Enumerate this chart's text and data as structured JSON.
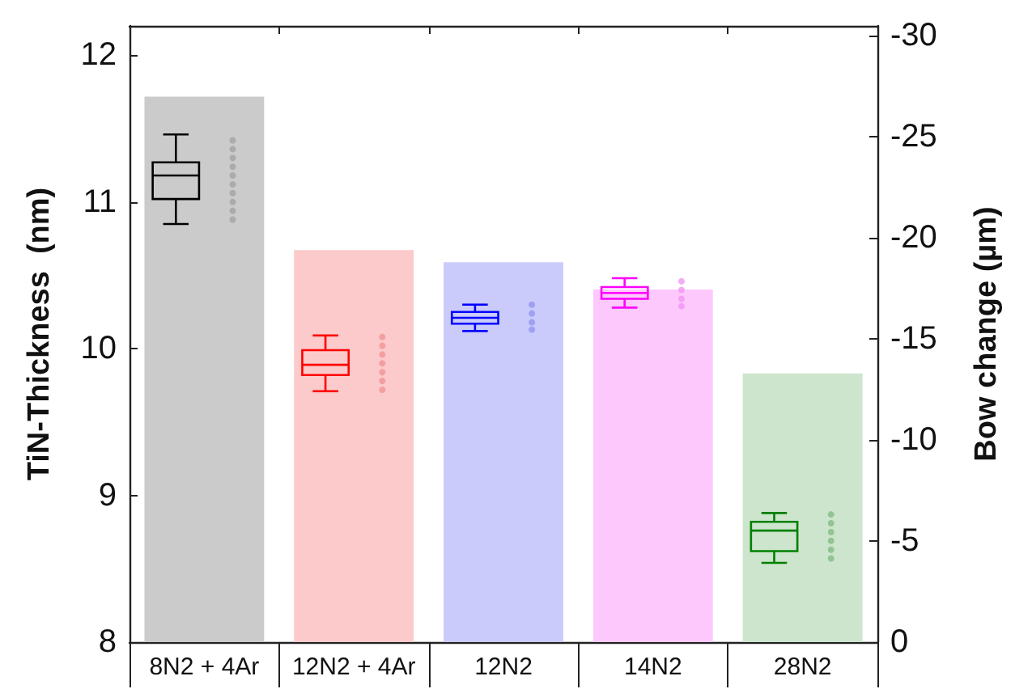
{
  "chart_data": {
    "type": "bar",
    "ylabel": "TiN-Thickness  (nm)",
    "y2label": "Bow change (µm)",
    "categories": [
      "8N2 + 4Ar",
      "12N2 + 4Ar",
      "12N2",
      "14N2",
      "28N2"
    ],
    "ylim": [
      8,
      12.2
    ],
    "yticks": [
      8,
      9,
      10,
      11,
      12
    ],
    "y2lim": [
      0,
      -30.5
    ],
    "y2ticks": [
      0,
      -5,
      -10,
      -15,
      -20,
      -25,
      -30
    ],
    "grid": false,
    "series": [
      {
        "axis": "y2",
        "colors": [
          "#cbcbcb",
          "#fccaca",
          "#cbcbfb",
          "#fdc9fd",
          "#cde5cd"
        ],
        "values": [
          -27.0,
          -19.4,
          -18.8,
          -17.45,
          -13.3
        ]
      },
      {
        "type": "box",
        "colors": [
          "#000000",
          "#ff0000",
          "#0000ff",
          "#ff00ff",
          "#008000"
        ],
        "boxes": [
          {
            "low": 10.85,
            "q1": 11.02,
            "median": 11.18,
            "q3": 11.27,
            "high": 11.46
          },
          {
            "low": 9.71,
            "q1": 9.82,
            "median": 9.89,
            "q3": 9.99,
            "high": 10.09
          },
          {
            "low": 10.12,
            "q1": 10.17,
            "median": 10.21,
            "q3": 10.25,
            "high": 10.3
          },
          {
            "low": 10.28,
            "q1": 10.34,
            "median": 10.38,
            "q3": 10.42,
            "high": 10.48
          },
          {
            "low": 8.54,
            "q1": 8.62,
            "median": 8.76,
            "q3": 8.82,
            "high": 8.88
          }
        ]
      },
      {
        "type": "scatter",
        "color": "#a0a0a0",
        "x": [
          "8N2 + 4Ar",
          "8N2 + 4Ar",
          "8N2 + 4Ar",
          "8N2 + 4Ar",
          "8N2 + 4Ar",
          "8N2 + 4Ar",
          "8N2 + 4Ar",
          "8N2 + 4Ar",
          "8N2 + 4Ar",
          "8N2 + 4Ar"
        ],
        "values": [
          11.42,
          11.36,
          11.3,
          11.24,
          11.18,
          11.12,
          11.06,
          11.0,
          10.94,
          10.88
        ]
      },
      {
        "type": "scatter",
        "color": "#f09090",
        "x": [
          "12N2 + 4Ar",
          "12N2 + 4Ar",
          "12N2 + 4Ar",
          "12N2 + 4Ar",
          "12N2 + 4Ar",
          "12N2 + 4Ar",
          "12N2 + 4Ar"
        ],
        "values": [
          10.08,
          10.02,
          9.96,
          9.9,
          9.84,
          9.78,
          9.72
        ]
      },
      {
        "type": "scatter",
        "color": "#9090f0",
        "x": [
          "12N2",
          "12N2",
          "12N2",
          "12N2"
        ],
        "values": [
          10.3,
          10.24,
          10.18,
          10.13
        ]
      },
      {
        "type": "scatter",
        "color": "#f090f0",
        "x": [
          "14N2",
          "14N2",
          "14N2",
          "14N2"
        ],
        "values": [
          10.46,
          10.4,
          10.34,
          10.29
        ]
      },
      {
        "type": "scatter",
        "color": "#80b880",
        "x": [
          "28N2",
          "28N2",
          "28N2",
          "28N2",
          "28N2",
          "28N2"
        ],
        "values": [
          8.87,
          8.81,
          8.75,
          8.69,
          8.63,
          8.57
        ]
      }
    ]
  }
}
